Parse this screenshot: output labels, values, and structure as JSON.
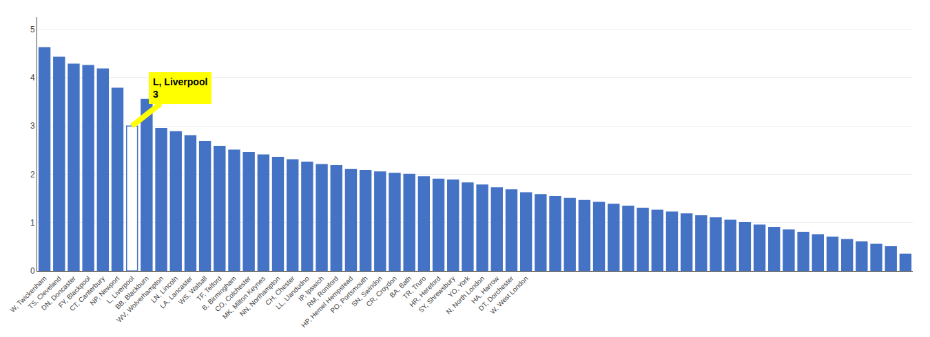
{
  "chart_data": {
    "type": "bar",
    "categories": [
      "W, Twickenham",
      "TS, Cleveland",
      "DN, Doncaster",
      "FY, Blackpool",
      "CT, Canterbury",
      "NP, Newport",
      "L, Liverpool",
      "BB, Blackburn",
      "WV, Wolverhampton",
      "LN, Lincoln",
      "LA, Lancaster",
      "WS, Walsall",
      "TF, Telford",
      "B, Birmingham",
      "CO, Colchester",
      "MK, Milton Keynes",
      "NN, Northampton",
      "CH, Chester",
      "LL, Llandudno",
      "IP, Ipswich",
      "RM, Romford",
      "HP, Hemel Hempstead",
      "PO, Portsmouth",
      "SN, Swindon",
      "CR, Croydon",
      "BA, Bath",
      "TR, Truro",
      "HR, Hereford",
      "SY, Shrewsbury",
      "YO, York",
      "N, North London",
      "HA, Harrow",
      "DT, Dorchester",
      "W, West London",
      null,
      null,
      null,
      null,
      null,
      null,
      null,
      null,
      null,
      null,
      null,
      null,
      null,
      null,
      null,
      null,
      null,
      null,
      null,
      null,
      null,
      null,
      null,
      null,
      null,
      null
    ],
    "values": [
      4.62,
      4.42,
      4.28,
      4.25,
      4.18,
      3.78,
      3.0,
      3.55,
      2.95,
      2.88,
      2.8,
      2.68,
      2.58,
      2.5,
      2.45,
      2.4,
      2.35,
      2.3,
      2.25,
      2.2,
      2.18,
      2.1,
      2.08,
      2.05,
      2.02,
      2.0,
      1.95,
      1.9,
      1.88,
      1.82,
      1.78,
      1.72,
      1.68,
      1.62,
      1.58,
      1.54,
      1.5,
      1.46,
      1.42,
      1.38,
      1.34,
      1.3,
      1.26,
      1.22,
      1.18,
      1.14,
      1.1,
      1.05,
      1.0,
      0.95,
      0.9,
      0.85,
      0.8,
      0.75,
      0.7,
      0.65,
      0.6,
      0.55,
      0.5,
      0.35
    ],
    "color": "#4472c4",
    "colors": [
      "#4472c4",
      "#4472c4",
      "#4472c4",
      "#4472c4",
      "#4472c4",
      "#4472c4",
      "#ffffff",
      "#4472c4",
      "#4472c4",
      "#4472c4",
      "#4472c4",
      "#4472c4",
      "#4472c4",
      "#4472c4",
      "#4472c4",
      "#4472c4",
      "#4472c4",
      "#4472c4",
      "#4472c4",
      "#4472c4",
      "#4472c4",
      "#4472c4",
      "#4472c4",
      "#4472c4",
      "#4472c4",
      "#4472c4",
      "#4472c4",
      "#4472c4",
      "#4472c4",
      "#4472c4",
      "#4472c4",
      "#4472c4",
      "#4472c4",
      "#4472c4",
      "#4472c4",
      "#4472c4",
      "#4472c4",
      "#4472c4",
      "#4472c4",
      "#4472c4",
      "#4472c4",
      "#4472c4",
      "#4472c4",
      "#4472c4",
      "#4472c4",
      "#4472c4",
      "#4472c4",
      "#4472c4",
      "#4472c4",
      "#4472c4",
      "#4472c4",
      "#4472c4",
      "#4472c4",
      "#4472c4",
      "#4472c4",
      "#4472c4",
      "#4472c4",
      "#4472c4",
      "#4472c4",
      "#4472c4"
    ],
    "ylim": [
      0,
      5.25
    ],
    "yticks": [
      0,
      1,
      2,
      3,
      4,
      5
    ],
    "grid": true,
    "annotations": [
      {
        "text": "L, Liverpool\n3",
        "x": "L, Liverpool",
        "y": 3,
        "color": "#ffff00"
      }
    ]
  }
}
